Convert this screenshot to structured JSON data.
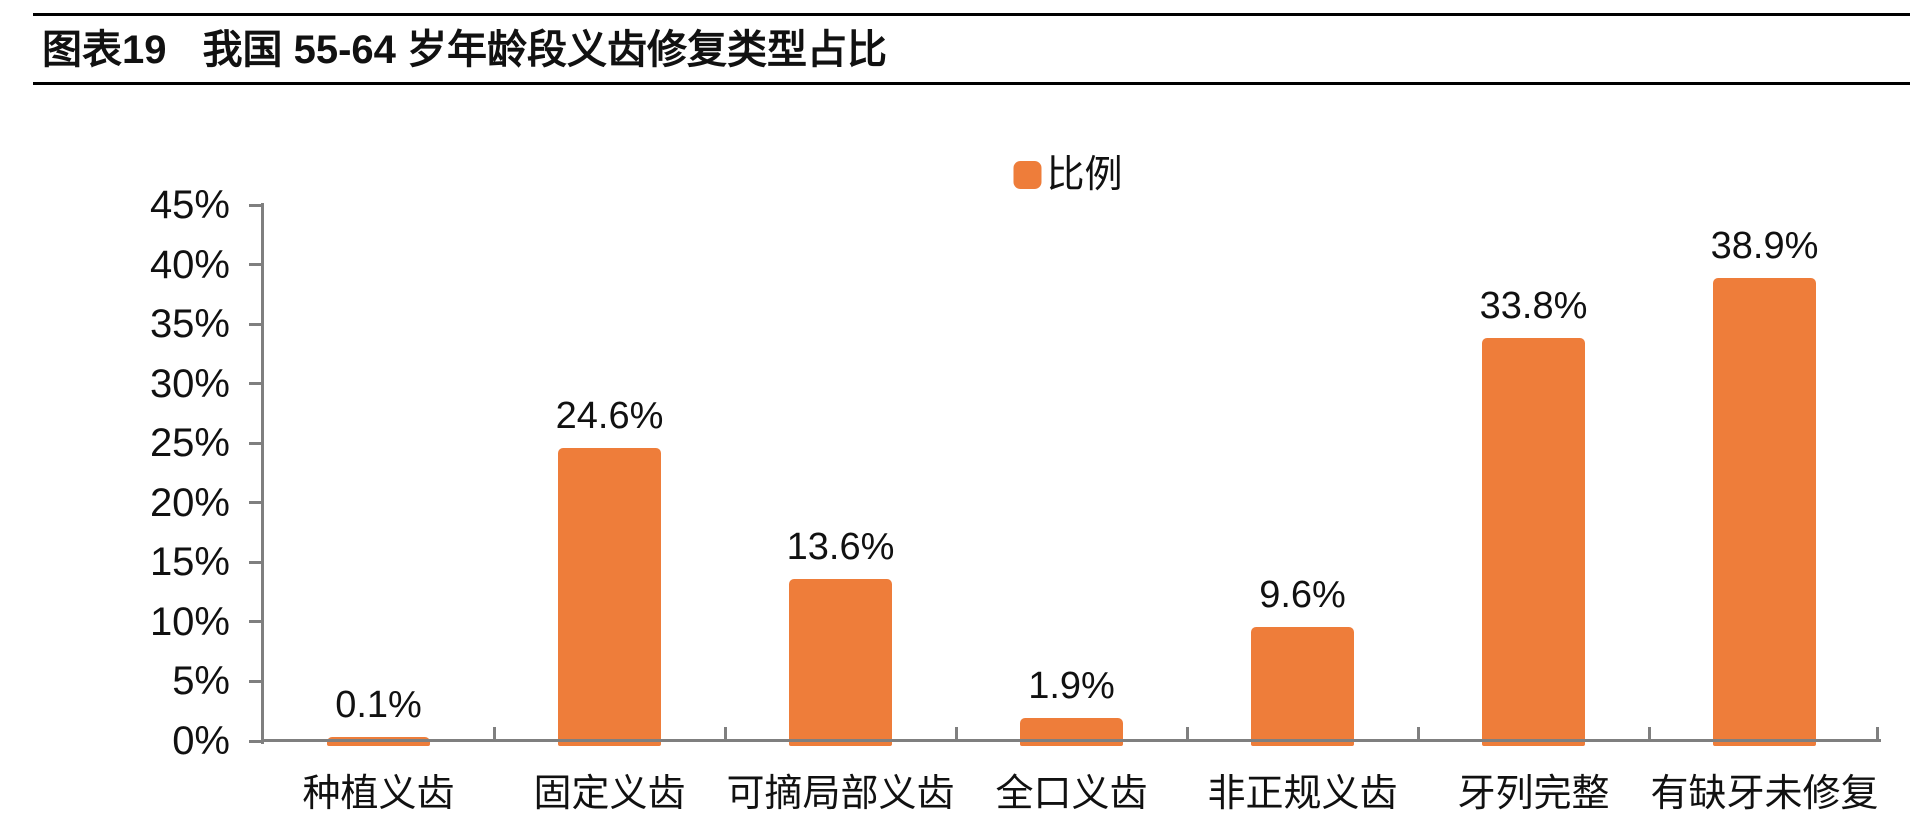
{
  "header": {
    "chart_no": "图表19",
    "title": "我国 55-64 岁年龄段义齿修复类型占比"
  },
  "legend": {
    "label": "比例"
  },
  "colors": {
    "bar": "#EE7D3A",
    "axis": "#7F7F7F",
    "text": "#111111",
    "rule": "#000000"
  },
  "chart_data": {
    "type": "bar",
    "title": "我国 55-64 岁年龄段义齿修复类型占比",
    "legend_entries": [
      "比例"
    ],
    "legend_position": "top-center",
    "categories": [
      "种植义齿",
      "固定义齿",
      "可摘局部义齿",
      "全口义齿",
      "非正规义齿",
      "牙列完整",
      "有缺牙未修复"
    ],
    "values": [
      0.1,
      24.6,
      13.6,
      1.9,
      9.6,
      33.8,
      38.9
    ],
    "value_labels": [
      "0.1%",
      "24.6%",
      "13.6%",
      "1.9%",
      "9.6%",
      "33.8%",
      "38.9%"
    ],
    "xlabel": "",
    "ylabel": "",
    "ylim": [
      0,
      45
    ],
    "ytick_step": 5,
    "ytick_labels": [
      "0%",
      "5%",
      "10%",
      "15%",
      "20%",
      "25%",
      "30%",
      "35%",
      "40%",
      "45%"
    ],
    "grid": false
  }
}
